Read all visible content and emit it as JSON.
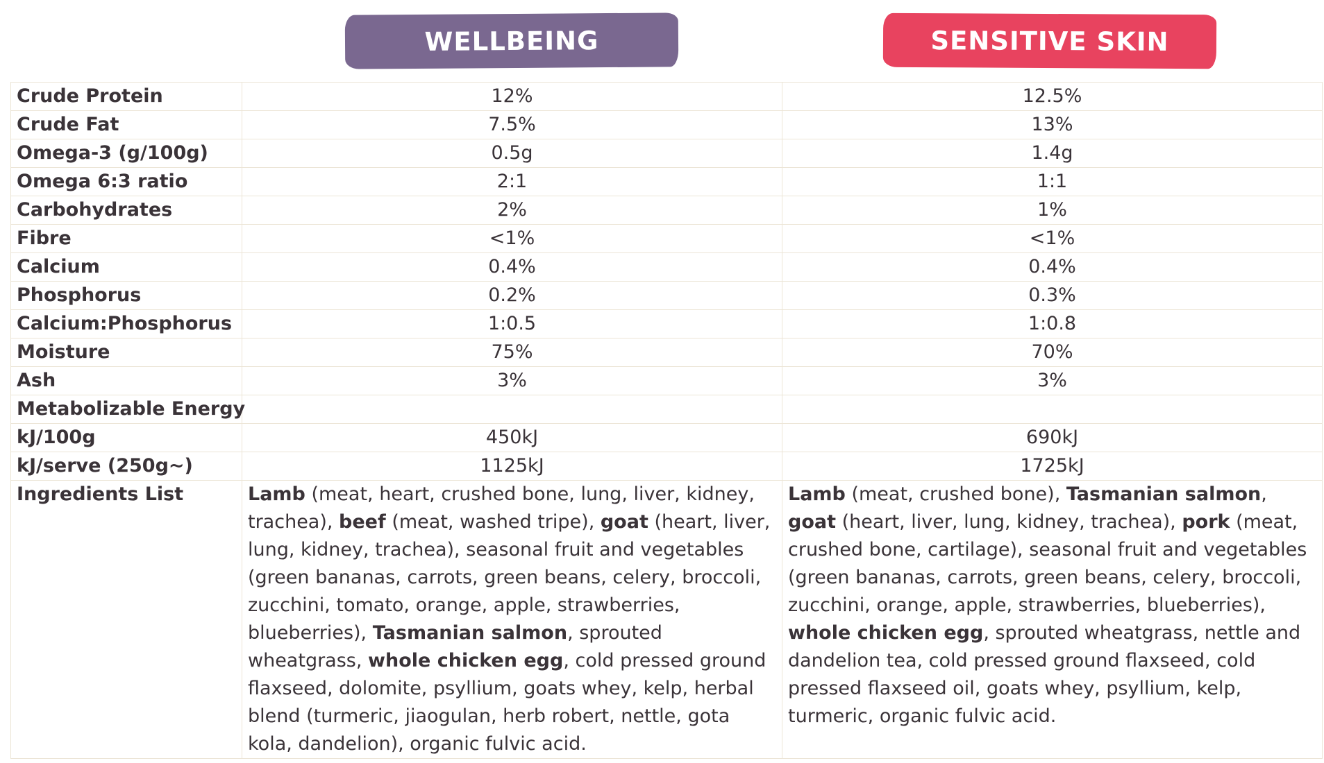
{
  "headers": {
    "wellbeing": "WELLBEING",
    "sensitive": "SENSITIVE SKIN"
  },
  "colors": {
    "wellbeing": "#7a6890",
    "sensitive": "#e8435f",
    "border": "#ece5d6",
    "text": "#3a3338"
  },
  "rows": [
    {
      "label": "Crude Protein",
      "wellbeing": "12%",
      "sensitive": "12.5%"
    },
    {
      "label": "Crude Fat",
      "wellbeing": "7.5%",
      "sensitive": "13%"
    },
    {
      "label": "Omega-3 (g/100g)",
      "wellbeing": "0.5g",
      "sensitive": "1.4g"
    },
    {
      "label": "Omega 6:3 ratio",
      "wellbeing": "2:1",
      "sensitive": "1:1"
    },
    {
      "label": "Carbohydrates",
      "wellbeing": "2%",
      "sensitive": "1%"
    },
    {
      "label": "Fibre",
      "wellbeing": "<1%",
      "sensitive": "<1%"
    },
    {
      "label": "Calcium",
      "wellbeing": "0.4%",
      "sensitive": "0.4%"
    },
    {
      "label": "Phosphorus",
      "wellbeing": "0.2%",
      "sensitive": "0.3%"
    },
    {
      "label": "Calcium:Phosphorus",
      "wellbeing": "1:0.5",
      "sensitive": "1:0.8"
    },
    {
      "label": "Moisture",
      "wellbeing": "75%",
      "sensitive": "70%"
    },
    {
      "label": "Ash",
      "wellbeing": "3%",
      "sensitive": "3%"
    },
    {
      "label": "Metabolizable Energy",
      "wellbeing": "",
      "sensitive": ""
    },
    {
      "label": "kJ/100g",
      "wellbeing": "450kJ",
      "sensitive": "690kJ"
    },
    {
      "label": "kJ/serve (250g~)",
      "wellbeing": "1125kJ",
      "sensitive": "1725kJ"
    }
  ],
  "ingredients": {
    "label": "Ingredients List",
    "wellbeing": [
      {
        "t": "Lamb",
        "b": true
      },
      {
        "t": " (meat, heart, crushed bone, lung, liver, kidney, trachea), ",
        "b": false
      },
      {
        "t": "beef",
        "b": true
      },
      {
        "t": " (meat, washed tripe), ",
        "b": false
      },
      {
        "t": "goat",
        "b": true
      },
      {
        "t": " (heart, liver, lung, kidney, trachea), seasonal fruit and vegetables (green bananas, carrots, green beans, celery, broccoli, zucchini, tomato, orange, apple, strawberries, blueberries), ",
        "b": false
      },
      {
        "t": "Tasmanian salmon",
        "b": true
      },
      {
        "t": ", sprouted wheatgrass, ",
        "b": false
      },
      {
        "t": "whole chicken egg",
        "b": true
      },
      {
        "t": ", cold pressed ground flaxseed, dolomite, psyllium, goats whey, kelp, herbal blend (turmeric, jiaogulan, herb robert, nettle, gota kola, dandelion), organic fulvic acid.",
        "b": false
      }
    ],
    "sensitive": [
      {
        "t": "Lamb",
        "b": true
      },
      {
        "t": " (meat, crushed bone), ",
        "b": false
      },
      {
        "t": "Tasmanian salmon",
        "b": true
      },
      {
        "t": ", ",
        "b": false
      },
      {
        "t": "goat",
        "b": true
      },
      {
        "t": " (heart, liver, lung, kidney, trachea), ",
        "b": false
      },
      {
        "t": "pork",
        "b": true
      },
      {
        "t": " (meat, crushed bone, cartilage), seasonal fruit and vegetables (green bananas, carrots, green beans, celery, broccoli, zucchini, orange, apple, strawberries, blueberries), ",
        "b": false
      },
      {
        "t": "whole chicken egg",
        "b": true
      },
      {
        "t": ", sprouted wheatgrass, nettle and dandelion tea, cold pressed ground flaxseed, cold pressed flaxseed oil, goats whey, psyllium, kelp, turmeric, organic fulvic acid.",
        "b": false
      }
    ]
  }
}
